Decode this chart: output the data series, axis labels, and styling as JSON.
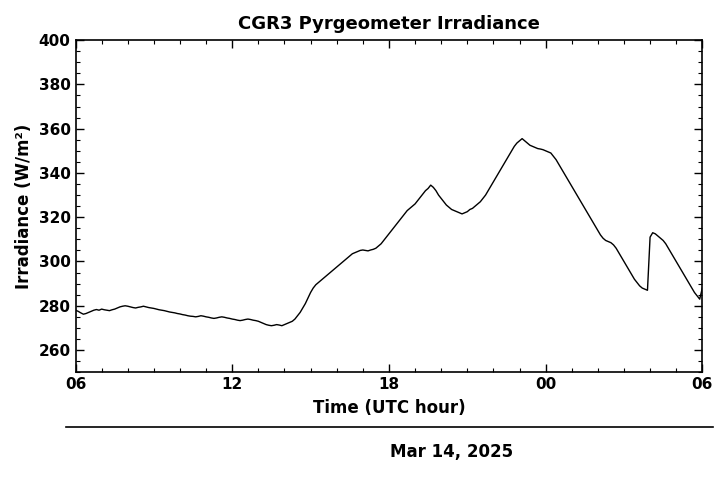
{
  "title": "CGR3 Pyrgeometer Irradiance",
  "xlabel": "Time (UTC hour)",
  "ylabel": "Irradiance (W/m²)",
  "date_label": "Mar 14, 2025",
  "xlim": [
    0,
    24
  ],
  "ylim": [
    250,
    400
  ],
  "yticks": [
    260,
    280,
    300,
    320,
    340,
    360,
    380,
    400
  ],
  "xtick_positions": [
    0,
    6,
    12,
    18,
    24
  ],
  "xtick_labels": [
    "06",
    "12",
    "18",
    "00",
    "06"
  ],
  "line_color": "#000000",
  "line_width": 1.0,
  "background_color": "#ffffff",
  "title_fontsize": 13,
  "axis_fontsize": 12,
  "tick_fontsize": 11,
  "time_series": [
    [
      0.0,
      278.0
    ],
    [
      0.1,
      277.5
    ],
    [
      0.2,
      276.8
    ],
    [
      0.3,
      276.2
    ],
    [
      0.4,
      276.5
    ],
    [
      0.5,
      277.0
    ],
    [
      0.6,
      277.5
    ],
    [
      0.7,
      278.0
    ],
    [
      0.8,
      278.3
    ],
    [
      0.9,
      278.0
    ],
    [
      1.0,
      278.5
    ],
    [
      1.1,
      278.2
    ],
    [
      1.2,
      278.0
    ],
    [
      1.3,
      277.8
    ],
    [
      1.4,
      278.2
    ],
    [
      1.5,
      278.5
    ],
    [
      1.6,
      279.0
    ],
    [
      1.7,
      279.5
    ],
    [
      1.8,
      279.8
    ],
    [
      1.9,
      280.0
    ],
    [
      2.0,
      279.8
    ],
    [
      2.1,
      279.5
    ],
    [
      2.2,
      279.2
    ],
    [
      2.3,
      279.0
    ],
    [
      2.4,
      279.3
    ],
    [
      2.5,
      279.5
    ],
    [
      2.6,
      279.8
    ],
    [
      2.7,
      279.5
    ],
    [
      2.8,
      279.2
    ],
    [
      2.9,
      279.0
    ],
    [
      3.0,
      278.8
    ],
    [
      3.1,
      278.5
    ],
    [
      3.2,
      278.2
    ],
    [
      3.3,
      278.0
    ],
    [
      3.4,
      277.8
    ],
    [
      3.5,
      277.5
    ],
    [
      3.6,
      277.2
    ],
    [
      3.7,
      277.0
    ],
    [
      3.8,
      276.8
    ],
    [
      3.9,
      276.5
    ],
    [
      4.0,
      276.3
    ],
    [
      4.1,
      276.0
    ],
    [
      4.2,
      275.8
    ],
    [
      4.3,
      275.5
    ],
    [
      4.4,
      275.3
    ],
    [
      4.5,
      275.2
    ],
    [
      4.6,
      275.0
    ],
    [
      4.7,
      275.2
    ],
    [
      4.8,
      275.5
    ],
    [
      4.9,
      275.3
    ],
    [
      5.0,
      275.0
    ],
    [
      5.1,
      274.8
    ],
    [
      5.2,
      274.5
    ],
    [
      5.3,
      274.3
    ],
    [
      5.4,
      274.5
    ],
    [
      5.5,
      274.8
    ],
    [
      5.6,
      275.0
    ],
    [
      5.7,
      274.8
    ],
    [
      5.8,
      274.5
    ],
    [
      5.9,
      274.3
    ],
    [
      6.0,
      274.0
    ],
    [
      6.1,
      273.8
    ],
    [
      6.2,
      273.5
    ],
    [
      6.3,
      273.3
    ],
    [
      6.4,
      273.5
    ],
    [
      6.5,
      273.8
    ],
    [
      6.6,
      274.0
    ],
    [
      6.7,
      273.8
    ],
    [
      6.8,
      273.5
    ],
    [
      6.9,
      273.3
    ],
    [
      7.0,
      273.0
    ],
    [
      7.1,
      272.5
    ],
    [
      7.2,
      272.0
    ],
    [
      7.3,
      271.5
    ],
    [
      7.4,
      271.2
    ],
    [
      7.5,
      271.0
    ],
    [
      7.6,
      271.2
    ],
    [
      7.7,
      271.5
    ],
    [
      7.8,
      271.3
    ],
    [
      7.9,
      271.0
    ],
    [
      8.0,
      271.5
    ],
    [
      8.1,
      272.0
    ],
    [
      8.2,
      272.5
    ],
    [
      8.3,
      273.0
    ],
    [
      8.4,
      274.0
    ],
    [
      8.5,
      275.5
    ],
    [
      8.6,
      277.0
    ],
    [
      8.7,
      279.0
    ],
    [
      8.8,
      281.0
    ],
    [
      8.9,
      283.5
    ],
    [
      9.0,
      286.0
    ],
    [
      9.1,
      288.0
    ],
    [
      9.2,
      289.5
    ],
    [
      9.3,
      290.5
    ],
    [
      9.4,
      291.5
    ],
    [
      9.5,
      292.5
    ],
    [
      9.6,
      293.5
    ],
    [
      9.7,
      294.5
    ],
    [
      9.8,
      295.5
    ],
    [
      9.9,
      296.5
    ],
    [
      10.0,
      297.5
    ],
    [
      10.1,
      298.5
    ],
    [
      10.2,
      299.5
    ],
    [
      10.3,
      300.5
    ],
    [
      10.4,
      301.5
    ],
    [
      10.5,
      302.5
    ],
    [
      10.6,
      303.5
    ],
    [
      10.7,
      304.0
    ],
    [
      10.8,
      304.5
    ],
    [
      10.9,
      305.0
    ],
    [
      11.0,
      305.2
    ],
    [
      11.1,
      305.0
    ],
    [
      11.2,
      304.8
    ],
    [
      11.3,
      305.2
    ],
    [
      11.4,
      305.5
    ],
    [
      11.5,
      306.0
    ],
    [
      11.6,
      307.0
    ],
    [
      11.7,
      308.0
    ],
    [
      11.8,
      309.5
    ],
    [
      11.9,
      311.0
    ],
    [
      12.0,
      312.5
    ],
    [
      12.1,
      314.0
    ],
    [
      12.2,
      315.5
    ],
    [
      12.3,
      317.0
    ],
    [
      12.4,
      318.5
    ],
    [
      12.5,
      320.0
    ],
    [
      12.6,
      321.5
    ],
    [
      12.7,
      323.0
    ],
    [
      12.8,
      324.0
    ],
    [
      12.9,
      325.0
    ],
    [
      13.0,
      326.0
    ],
    [
      13.1,
      327.5
    ],
    [
      13.2,
      329.0
    ],
    [
      13.3,
      330.5
    ],
    [
      13.4,
      332.0
    ],
    [
      13.5,
      333.0
    ],
    [
      13.6,
      334.5
    ],
    [
      13.7,
      333.5
    ],
    [
      13.8,
      332.0
    ],
    [
      13.9,
      330.0
    ],
    [
      14.0,
      328.5
    ],
    [
      14.1,
      327.0
    ],
    [
      14.2,
      325.5
    ],
    [
      14.3,
      324.5
    ],
    [
      14.4,
      323.5
    ],
    [
      14.5,
      323.0
    ],
    [
      14.6,
      322.5
    ],
    [
      14.7,
      322.0
    ],
    [
      14.8,
      321.5
    ],
    [
      14.9,
      322.0
    ],
    [
      15.0,
      322.5
    ],
    [
      15.1,
      323.5
    ],
    [
      15.2,
      324.0
    ],
    [
      15.3,
      325.0
    ],
    [
      15.4,
      326.0
    ],
    [
      15.5,
      327.0
    ],
    [
      15.6,
      328.5
    ],
    [
      15.7,
      330.0
    ],
    [
      15.8,
      332.0
    ],
    [
      15.9,
      334.0
    ],
    [
      16.0,
      336.0
    ],
    [
      16.1,
      338.0
    ],
    [
      16.2,
      340.0
    ],
    [
      16.3,
      342.0
    ],
    [
      16.4,
      344.0
    ],
    [
      16.5,
      346.0
    ],
    [
      16.6,
      348.0
    ],
    [
      16.7,
      350.0
    ],
    [
      16.8,
      352.0
    ],
    [
      16.9,
      353.5
    ],
    [
      17.0,
      354.5
    ],
    [
      17.1,
      355.5
    ],
    [
      17.2,
      354.5
    ],
    [
      17.3,
      353.5
    ],
    [
      17.4,
      352.5
    ],
    [
      17.5,
      352.0
    ],
    [
      17.6,
      351.5
    ],
    [
      17.7,
      351.0
    ],
    [
      17.8,
      350.8
    ],
    [
      17.9,
      350.5
    ],
    [
      18.0,
      350.0
    ],
    [
      18.1,
      349.5
    ],
    [
      18.2,
      349.0
    ],
    [
      18.3,
      347.5
    ],
    [
      18.4,
      346.0
    ],
    [
      18.5,
      344.0
    ],
    [
      18.6,
      342.0
    ],
    [
      18.7,
      340.0
    ],
    [
      18.8,
      338.0
    ],
    [
      18.9,
      336.0
    ],
    [
      19.0,
      334.0
    ],
    [
      19.1,
      332.0
    ],
    [
      19.2,
      330.0
    ],
    [
      19.3,
      328.0
    ],
    [
      19.4,
      326.0
    ],
    [
      19.5,
      324.0
    ],
    [
      19.6,
      322.0
    ],
    [
      19.7,
      320.0
    ],
    [
      19.8,
      318.0
    ],
    [
      19.9,
      316.0
    ],
    [
      20.0,
      314.0
    ],
    [
      20.1,
      312.0
    ],
    [
      20.2,
      310.5
    ],
    [
      20.3,
      309.5
    ],
    [
      20.4,
      309.0
    ],
    [
      20.5,
      308.5
    ],
    [
      20.6,
      307.5
    ],
    [
      20.7,
      306.0
    ],
    [
      20.8,
      304.0
    ],
    [
      20.9,
      302.0
    ],
    [
      21.0,
      300.0
    ],
    [
      21.1,
      298.0
    ],
    [
      21.2,
      296.0
    ],
    [
      21.3,
      294.0
    ],
    [
      21.4,
      292.0
    ],
    [
      21.5,
      290.5
    ],
    [
      21.6,
      289.0
    ],
    [
      21.7,
      288.0
    ],
    [
      21.8,
      287.5
    ],
    [
      21.9,
      287.0
    ],
    [
      22.0,
      311.0
    ],
    [
      22.1,
      313.0
    ],
    [
      22.2,
      312.5
    ],
    [
      22.3,
      311.5
    ],
    [
      22.4,
      310.5
    ],
    [
      22.5,
      309.5
    ],
    [
      22.6,
      308.0
    ],
    [
      22.7,
      306.0
    ],
    [
      22.8,
      304.0
    ],
    [
      22.9,
      302.0
    ],
    [
      23.0,
      300.0
    ],
    [
      23.1,
      298.0
    ],
    [
      23.2,
      296.0
    ],
    [
      23.3,
      294.0
    ],
    [
      23.4,
      292.0
    ],
    [
      23.5,
      290.0
    ],
    [
      23.6,
      288.0
    ],
    [
      23.7,
      286.0
    ],
    [
      23.8,
      284.5
    ],
    [
      23.9,
      283.0
    ],
    [
      24.0,
      288.0
    ]
  ]
}
